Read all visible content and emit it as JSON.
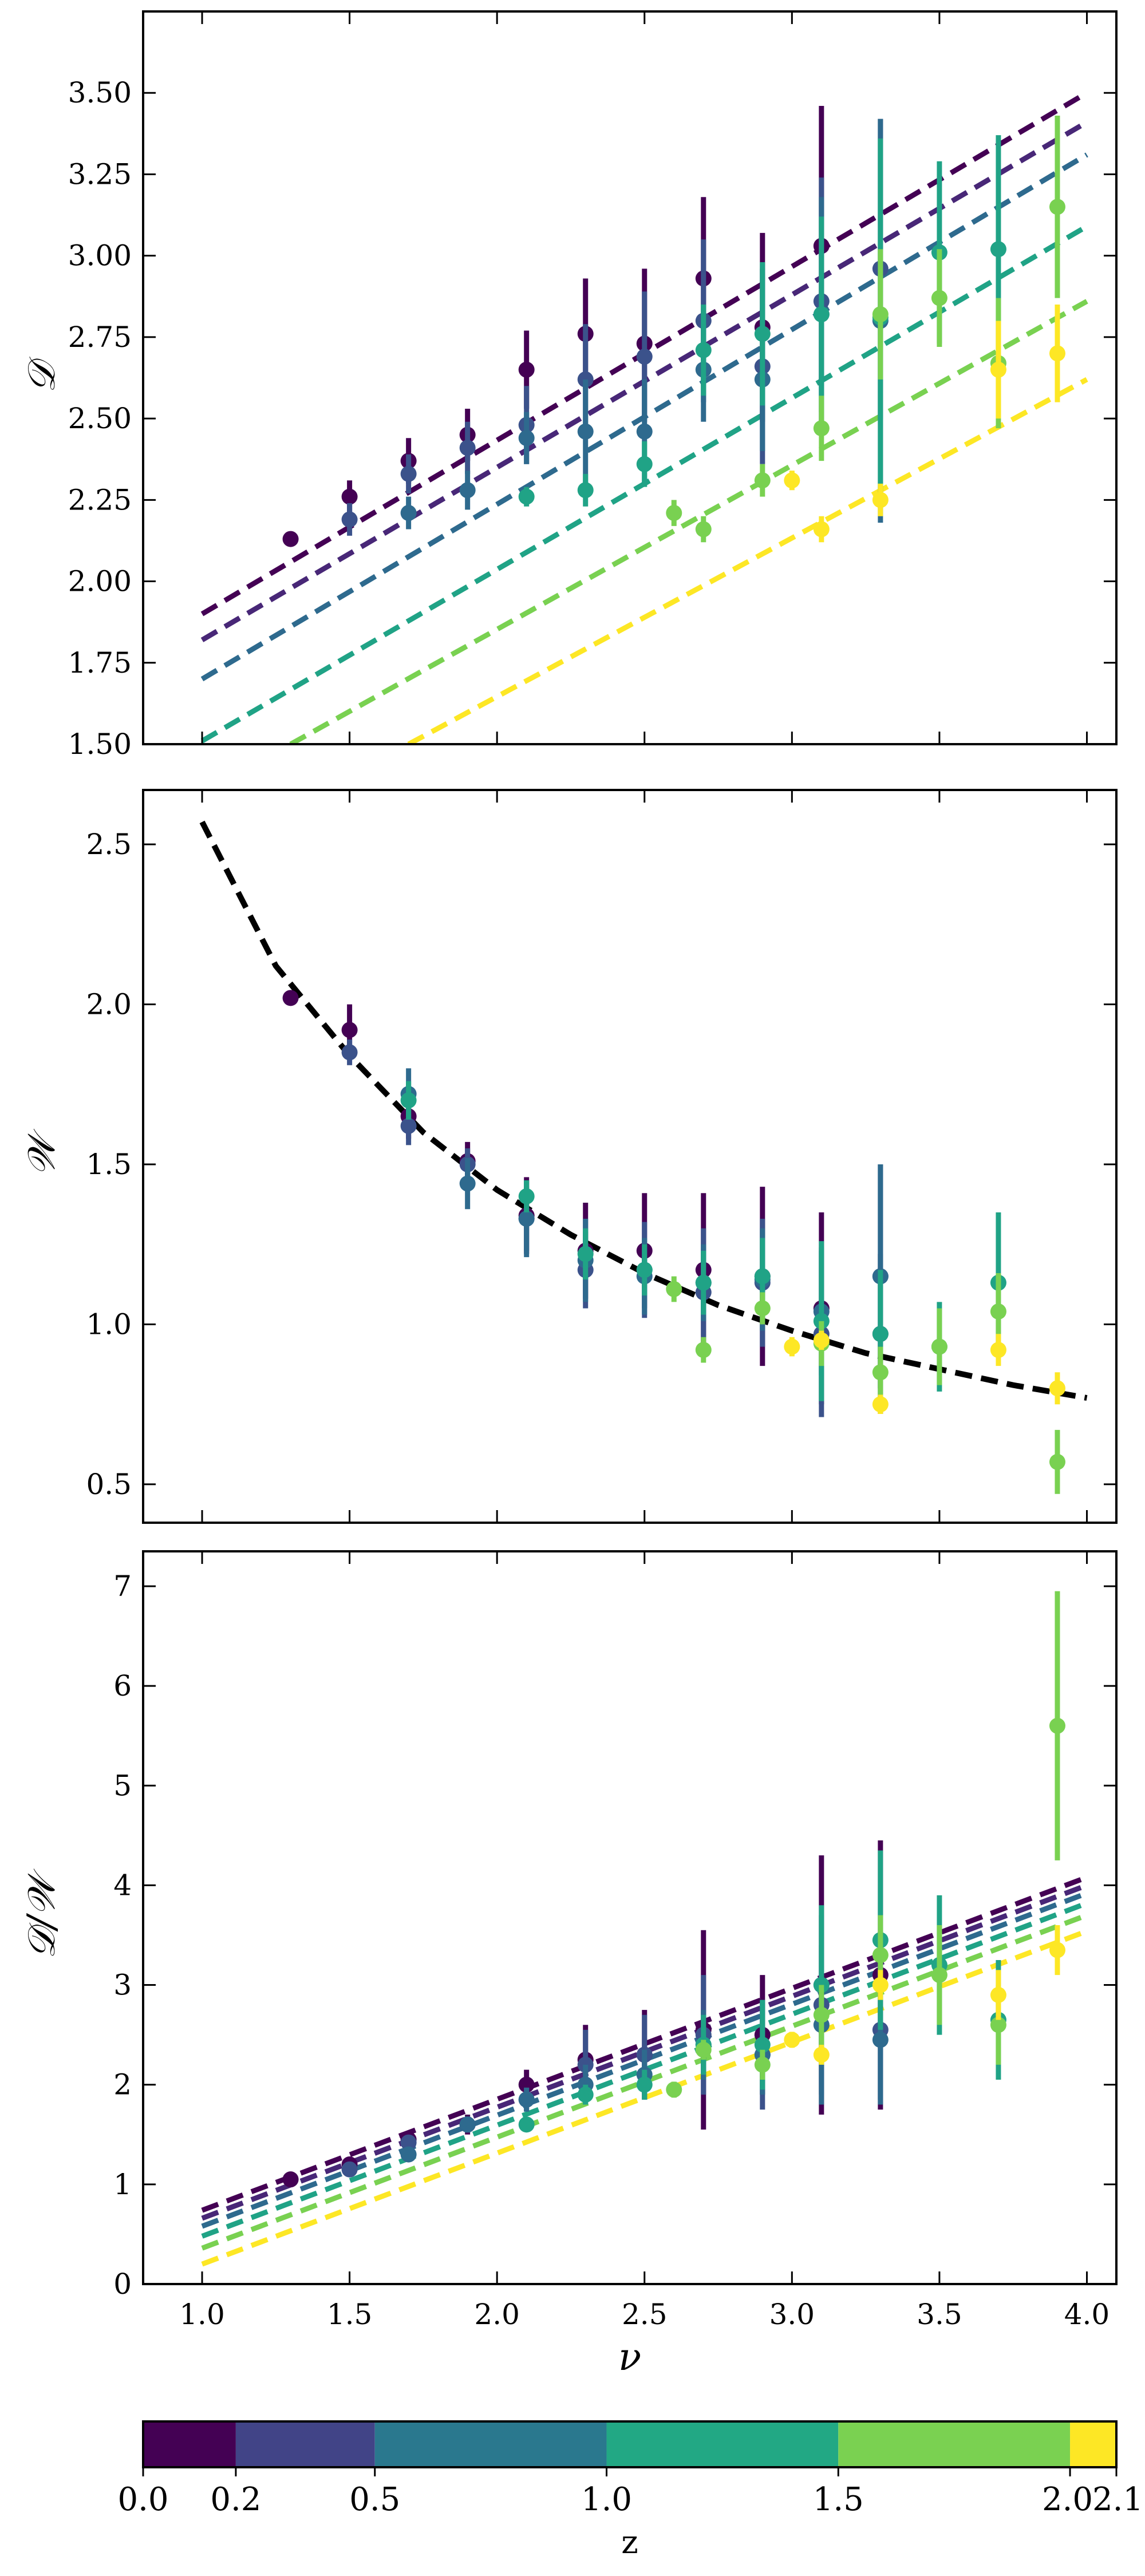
{
  "chart_data": [
    {
      "type": "scatter",
      "panel": "top",
      "ylabel": "𝒟",
      "xlim": [
        0.8,
        4.1
      ],
      "ylim": [
        1.5,
        3.75
      ],
      "xticks": [
        1.0,
        1.5,
        2.0,
        2.5,
        3.0,
        3.5,
        4.0
      ],
      "yticks": [
        1.5,
        1.75,
        2.0,
        2.25,
        2.5,
        2.75,
        3.0,
        3.25,
        3.5
      ],
      "yticklabels": [
        "1.50",
        "1.75",
        "2.00",
        "2.25",
        "2.50",
        "2.75",
        "3.00",
        "3.25",
        "3.50"
      ],
      "model_curves": [
        {
          "z": 0.0,
          "color": "#440154",
          "x": [
            1.0,
            4.0
          ],
          "y": [
            1.9,
            3.5
          ]
        },
        {
          "z": 0.2,
          "color": "#482777",
          "x": [
            1.0,
            4.0
          ],
          "y": [
            1.82,
            3.41
          ]
        },
        {
          "z": 0.5,
          "color": "#2e6a8e",
          "x": [
            1.0,
            4.0
          ],
          "y": [
            1.7,
            3.31
          ]
        },
        {
          "z": 1.0,
          "color": "#20a386",
          "x": [
            1.0,
            4.0
          ],
          "y": [
            1.51,
            3.09
          ]
        },
        {
          "z": 1.5,
          "color": "#79d151",
          "x": [
            1.3,
            4.0
          ],
          "y": [
            1.5,
            2.86
          ]
        },
        {
          "z": 2.0,
          "color": "#fde725",
          "x": [
            1.7,
            4.0
          ],
          "y": [
            1.5,
            2.62
          ]
        }
      ],
      "points": [
        {
          "z": 0.0,
          "color": "#440154",
          "x": [
            1.3,
            1.5,
            1.7,
            1.9,
            2.1,
            2.3,
            2.5,
            2.7,
            2.9,
            3.1
          ],
          "y": [
            2.13,
            2.26,
            2.37,
            2.45,
            2.65,
            2.76,
            2.73,
            2.93,
            2.78,
            3.03
          ],
          "err": [
            0.02,
            0.05,
            0.07,
            0.08,
            0.12,
            0.17,
            0.23,
            0.25,
            0.29,
            0.43
          ]
        },
        {
          "z": 0.2,
          "color": "#3b528b",
          "x": [
            1.5,
            1.7,
            1.9,
            2.1,
            2.3,
            2.5,
            2.7,
            2.9,
            3.1,
            3.3
          ],
          "y": [
            2.19,
            2.33,
            2.41,
            2.48,
            2.62,
            2.69,
            2.8,
            2.66,
            2.86,
            2.96
          ],
          "err": [
            0.05,
            0.06,
            0.08,
            0.12,
            0.17,
            0.2,
            0.25,
            0.3,
            0.38,
            0.46
          ]
        },
        {
          "z": 0.5,
          "color": "#2e6a8e",
          "x": [
            1.7,
            1.9,
            2.1,
            2.3,
            2.5,
            2.7,
            2.9,
            3.1,
            3.3
          ],
          "y": [
            2.21,
            2.28,
            2.44,
            2.46,
            2.46,
            2.65,
            2.62,
            2.82,
            2.8
          ],
          "err": [
            0.05,
            0.06,
            0.08,
            0.16,
            0.16,
            0.16,
            0.22,
            0.36,
            0.62
          ]
        },
        {
          "z": 1.0,
          "color": "#20a386",
          "x": [
            2.1,
            2.3,
            2.5,
            2.7,
            2.9,
            3.1,
            3.3,
            3.5,
            3.7
          ],
          "y": [
            2.26,
            2.28,
            2.36,
            2.71,
            2.76,
            2.82,
            2.81,
            3.01,
            3.02
          ],
          "err": [
            0.03,
            0.05,
            0.07,
            0.14,
            0.22,
            0.3,
            0.55,
            0.28,
            0.35
          ]
        },
        {
          "z": 1.5,
          "color": "#79d151",
          "x": [
            2.6,
            2.7,
            2.9,
            3.1,
            3.3,
            3.5,
            3.7,
            3.9
          ],
          "y": [
            2.21,
            2.16,
            2.31,
            2.47,
            2.82,
            2.87,
            2.67,
            3.15
          ],
          "err": [
            0.04,
            0.04,
            0.05,
            0.1,
            0.2,
            0.15,
            0.2,
            0.28
          ]
        },
        {
          "z": 2.0,
          "color": "#fde725",
          "x": [
            3.0,
            3.1,
            3.3,
            3.7,
            3.9
          ],
          "y": [
            2.31,
            2.16,
            2.25,
            2.65,
            2.7
          ],
          "err": [
            0.03,
            0.04,
            0.05,
            0.15,
            0.15
          ]
        }
      ]
    },
    {
      "type": "scatter",
      "panel": "middle",
      "ylabel": "𝒲",
      "xlim": [
        0.8,
        4.1
      ],
      "ylim": [
        0.38,
        2.67
      ],
      "xticks": [
        1.0,
        1.5,
        2.0,
        2.5,
        3.0,
        3.5,
        4.0
      ],
      "yticks": [
        0.5,
        1.0,
        1.5,
        2.0,
        2.5
      ],
      "yticklabels": [
        "0.5",
        "1.0",
        "1.5",
        "2.0",
        "2.5"
      ],
      "model_curve": {
        "color": "#000000",
        "style": "dashed",
        "x": [
          1.0,
          1.25,
          1.5,
          1.75,
          2.0,
          2.25,
          2.5,
          2.75,
          3.0,
          3.25,
          3.5,
          3.75,
          4.0
        ],
        "y": [
          2.57,
          2.12,
          1.84,
          1.6,
          1.42,
          1.28,
          1.16,
          1.06,
          0.98,
          0.91,
          0.86,
          0.81,
          0.77
        ]
      },
      "points": [
        {
          "z": 0.0,
          "color": "#440154",
          "x": [
            1.3,
            1.5,
            1.7,
            1.9,
            2.1,
            2.3,
            2.5,
            2.7,
            2.9,
            3.1,
            3.3
          ],
          "y": [
            2.02,
            1.92,
            1.65,
            1.51,
            1.34,
            1.23,
            1.23,
            1.17,
            1.15,
            1.05,
            0.97
          ],
          "err": [
            0.02,
            0.08,
            0.07,
            0.06,
            0.12,
            0.15,
            0.18,
            0.24,
            0.28,
            0.3,
            0.25
          ]
        },
        {
          "z": 0.2,
          "color": "#3b528b",
          "x": [
            1.5,
            1.7,
            1.9,
            2.1,
            2.3,
            2.5,
            2.7,
            2.9,
            3.1,
            3.3
          ],
          "y": [
            1.85,
            1.62,
            1.5,
            1.33,
            1.17,
            1.17,
            1.1,
            1.13,
            0.97,
            1.15
          ],
          "err": [
            0.04,
            0.06,
            0.05,
            0.1,
            0.12,
            0.15,
            0.2,
            0.2,
            0.26,
            0.35
          ]
        },
        {
          "z": 0.5,
          "color": "#2e6a8e",
          "x": [
            1.7,
            1.9,
            2.1,
            2.3,
            2.5,
            2.7,
            2.9,
            3.1,
            3.3
          ],
          "y": [
            1.72,
            1.44,
            1.33,
            1.2,
            1.15,
            1.13,
            1.14,
            1.04,
            1.15
          ],
          "err": [
            0.08,
            0.08,
            0.12,
            0.13,
            0.12,
            0.12,
            0.16,
            0.2,
            0.35
          ]
        },
        {
          "z": 1.0,
          "color": "#20a386",
          "x": [
            1.7,
            2.1,
            2.3,
            2.5,
            2.7,
            2.9,
            3.1,
            3.3,
            3.5,
            3.7
          ],
          "y": [
            1.7,
            1.4,
            1.22,
            1.17,
            1.13,
            1.15,
            1.01,
            0.97,
            0.93,
            1.13
          ],
          "err": [
            0.06,
            0.05,
            0.08,
            0.08,
            0.1,
            0.12,
            0.25,
            0.2,
            0.14,
            0.22
          ]
        },
        {
          "z": 1.5,
          "color": "#79d151",
          "x": [
            2.6,
            2.7,
            2.9,
            3.1,
            3.3,
            3.5,
            3.7,
            3.9
          ],
          "y": [
            1.11,
            0.92,
            1.05,
            0.94,
            0.85,
            0.93,
            1.04,
            0.57
          ],
          "err": [
            0.04,
            0.04,
            0.05,
            0.07,
            0.08,
            0.12,
            0.12,
            0.1
          ]
        },
        {
          "z": 2.0,
          "color": "#fde725",
          "x": [
            3.0,
            3.1,
            3.3,
            3.7,
            3.9
          ],
          "y": [
            0.93,
            0.95,
            0.75,
            0.92,
            0.8
          ],
          "err": [
            0.03,
            0.03,
            0.03,
            0.05,
            0.05
          ]
        }
      ]
    },
    {
      "type": "scatter",
      "panel": "bottom",
      "ylabel": "𝒟/𝒲",
      "xlabel": "ν",
      "xlim": [
        0.8,
        4.1
      ],
      "ylim": [
        0,
        7.35
      ],
      "xticks": [
        1.0,
        1.5,
        2.0,
        2.5,
        3.0,
        3.5,
        4.0
      ],
      "xticklabels": [
        "1.0",
        "1.5",
        "2.0",
        "2.5",
        "3.0",
        "3.5",
        "4.0"
      ],
      "yticks": [
        0,
        1,
        2,
        3,
        4,
        5,
        6,
        7
      ],
      "yticklabels": [
        "0",
        "1",
        "2",
        "3",
        "4",
        "5",
        "6",
        "7"
      ],
      "model_curves": [
        {
          "z": 0.0,
          "color": "#440154",
          "x": [
            1.0,
            4.0
          ],
          "y": [
            0.74,
            4.08
          ]
        },
        {
          "z": 0.2,
          "color": "#482777",
          "x": [
            1.0,
            4.0
          ],
          "y": [
            0.66,
            4.0
          ]
        },
        {
          "z": 0.5,
          "color": "#2e6a8e",
          "x": [
            1.0,
            4.0
          ],
          "y": [
            0.58,
            3.92
          ]
        },
        {
          "z": 1.0,
          "color": "#20a386",
          "x": [
            1.0,
            4.0
          ],
          "y": [
            0.48,
            3.82
          ]
        },
        {
          "z": 1.5,
          "color": "#79d151",
          "x": [
            1.0,
            4.0
          ],
          "y": [
            0.36,
            3.7
          ]
        },
        {
          "z": 2.0,
          "color": "#fde725",
          "x": [
            1.0,
            4.0
          ],
          "y": [
            0.2,
            3.54
          ]
        }
      ],
      "points": [
        {
          "z": 0.0,
          "color": "#440154",
          "x": [
            1.3,
            1.5,
            1.7,
            1.9,
            2.1,
            2.3,
            2.5,
            2.7,
            2.9,
            3.1,
            3.3
          ],
          "y": [
            1.05,
            1.2,
            1.45,
            1.6,
            2.0,
            2.25,
            2.3,
            2.55,
            2.5,
            3.0,
            3.1
          ],
          "err": [
            0.02,
            0.05,
            0.05,
            0.1,
            0.15,
            0.35,
            0.45,
            1.0,
            0.6,
            1.3,
            1.35
          ]
        },
        {
          "z": 0.2,
          "color": "#3b528b",
          "x": [
            1.5,
            1.7,
            1.9,
            2.1,
            2.3,
            2.5,
            2.7,
            2.9,
            3.1,
            3.3
          ],
          "y": [
            1.15,
            1.42,
            1.6,
            1.85,
            2.2,
            2.3,
            2.5,
            2.3,
            2.8,
            2.55
          ],
          "err": [
            0.05,
            0.05,
            0.08,
            0.12,
            0.35,
            0.4,
            0.6,
            0.55,
            0.9,
            0.7
          ]
        },
        {
          "z": 0.5,
          "color": "#2e6a8e",
          "x": [
            1.7,
            1.9,
            2.1,
            2.3,
            2.5,
            2.7,
            2.9,
            3.1,
            3.3
          ],
          "y": [
            1.3,
            1.6,
            1.85,
            2.0,
            2.1,
            2.4,
            2.3,
            2.6,
            2.45
          ],
          "err": [
            0.06,
            0.08,
            0.12,
            0.2,
            0.25,
            0.35,
            0.4,
            0.8,
            0.65
          ]
        },
        {
          "z": 1.0,
          "color": "#20a386",
          "x": [
            2.1,
            2.3,
            2.5,
            2.7,
            2.9,
            3.1,
            3.3,
            3.5,
            3.7
          ],
          "y": [
            1.6,
            1.9,
            2.0,
            2.4,
            2.4,
            3.0,
            3.45,
            3.2,
            2.65
          ],
          "err": [
            0.06,
            0.1,
            0.15,
            0.3,
            0.45,
            0.8,
            0.9,
            0.7,
            0.6
          ]
        },
        {
          "z": 1.5,
          "color": "#79d151",
          "x": [
            2.6,
            2.7,
            2.9,
            3.1,
            3.3,
            3.5,
            3.7,
            3.9
          ],
          "y": [
            1.95,
            2.35,
            2.2,
            2.7,
            3.3,
            3.1,
            2.6,
            5.6
          ],
          "err": [
            0.08,
            0.1,
            0.15,
            0.3,
            0.4,
            0.5,
            0.4,
            1.35
          ]
        },
        {
          "z": 2.0,
          "color": "#fde725",
          "x": [
            3.0,
            3.1,
            3.3,
            3.7,
            3.9
          ],
          "y": [
            2.45,
            2.3,
            3.0,
            2.9,
            3.35
          ],
          "err": [
            0.08,
            0.1,
            0.15,
            0.25,
            0.25
          ]
        }
      ]
    },
    {
      "type": "colorbar",
      "label": "z",
      "bins": [
        {
          "from": 0.0,
          "to": 0.2,
          "color": "#440154"
        },
        {
          "from": 0.2,
          "to": 0.5,
          "color": "#414487"
        },
        {
          "from": 0.5,
          "to": 1.0,
          "color": "#2a788e"
        },
        {
          "from": 1.0,
          "to": 1.5,
          "color": "#22a884"
        },
        {
          "from": 1.5,
          "to": 2.0,
          "color": "#7ad151"
        },
        {
          "from": 2.0,
          "to": 2.1,
          "color": "#fde725"
        }
      ],
      "ticklabels": [
        "0.0",
        "0.2",
        "0.5",
        "1.0",
        "1.5",
        "2.0",
        "2.1"
      ]
    }
  ]
}
